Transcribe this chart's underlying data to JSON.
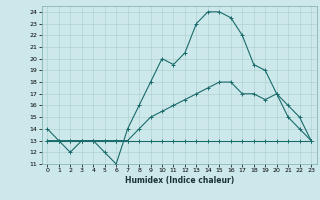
{
  "xlabel": "Humidex (Indice chaleur)",
  "ylabel": "",
  "bg_color": "#cce8ea",
  "grid_color": "#aacccc",
  "line_color": "#1a6b6b",
  "xlim": [
    -0.5,
    23.5
  ],
  "ylim": [
    11,
    24.5
  ],
  "xticks": [
    0,
    1,
    2,
    3,
    4,
    5,
    6,
    7,
    8,
    9,
    10,
    11,
    12,
    13,
    14,
    15,
    16,
    17,
    18,
    19,
    20,
    21,
    22,
    23
  ],
  "yticks": [
    11,
    12,
    13,
    14,
    15,
    16,
    17,
    18,
    19,
    20,
    21,
    22,
    23,
    24
  ],
  "line1_x": [
    0,
    1,
    2,
    3,
    4,
    5,
    6,
    7,
    8,
    9,
    10,
    11,
    12,
    13,
    14,
    15,
    16,
    17,
    18,
    19,
    20,
    21,
    22,
    23
  ],
  "line1_y": [
    14,
    13,
    12,
    13,
    13,
    12,
    11,
    14,
    16,
    18,
    20,
    19.5,
    20.5,
    23,
    24,
    24,
    23.5,
    22,
    19.5,
    19,
    17,
    15,
    14,
    13
  ],
  "line2_x": [
    0,
    1,
    2,
    3,
    4,
    5,
    6,
    7,
    8,
    9,
    10,
    11,
    12,
    13,
    14,
    15,
    16,
    17,
    18,
    19,
    20,
    21,
    22,
    23
  ],
  "line2_y": [
    13,
    13,
    13,
    13,
    13,
    13,
    13,
    13,
    13,
    13,
    13,
    13,
    13,
    13,
    13,
    13,
    13,
    13,
    13,
    13,
    13,
    13,
    13,
    13
  ],
  "line3_x": [
    0,
    1,
    2,
    3,
    4,
    5,
    6,
    7,
    8,
    9,
    10,
    11,
    12,
    13,
    14,
    15,
    16,
    17,
    18,
    19,
    20,
    21,
    22,
    23
  ],
  "line3_y": [
    13,
    13,
    13,
    13,
    13,
    13,
    13,
    13,
    14,
    15,
    15.5,
    16,
    16.5,
    17,
    17.5,
    18,
    18,
    17,
    17,
    16.5,
    17,
    16,
    15,
    13
  ]
}
